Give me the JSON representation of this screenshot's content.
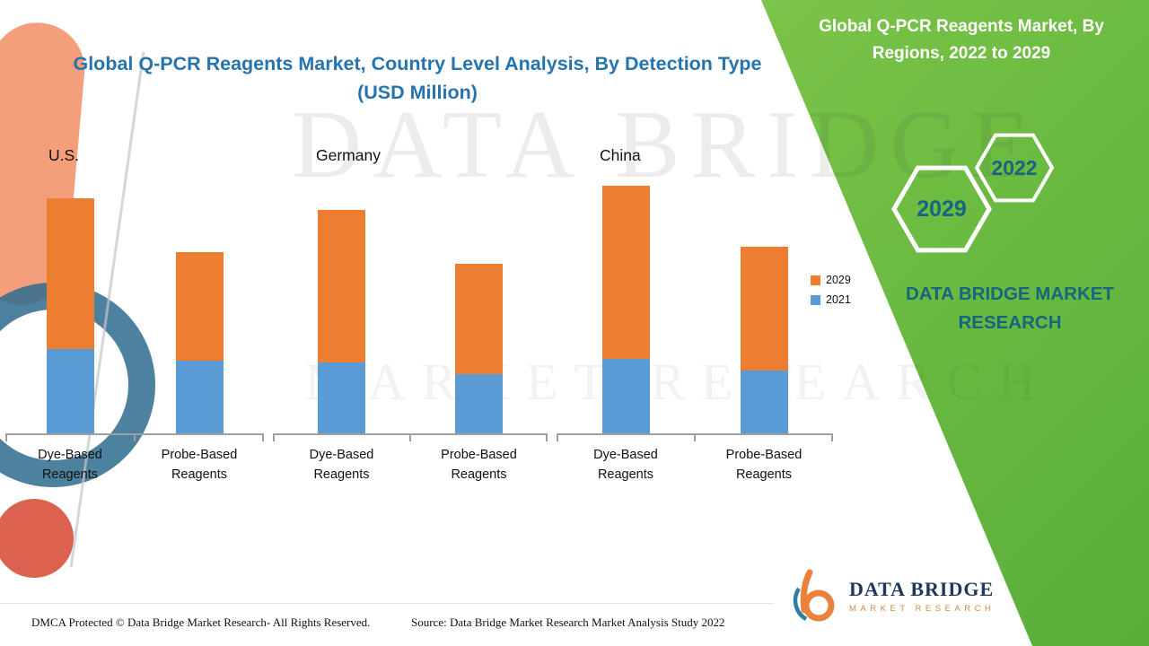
{
  "header": {
    "main_title": "Global Q-PCR Reagents Market, Country Level Analysis, By Detection Type (USD Million)"
  },
  "right_panel": {
    "title": "Global Q-PCR Reagents Market, By Regions, 2022 to 2029",
    "hexagons": [
      "2029",
      "2022"
    ],
    "brand_text": "DATA BRIDGE MARKET RESEARCH"
  },
  "legend": [
    {
      "label": "2029",
      "color": "#ED7D31"
    },
    {
      "label": "2021",
      "color": "#5B9BD5"
    }
  ],
  "chart_data": {
    "type": "bar",
    "stacked": true,
    "title": "Global Q-PCR Reagents Market, Country Level Analysis, By Detection Type (USD Million)",
    "value_axis": "no numeric axis shown; values are relative estimates from bar heights",
    "series_names": [
      "2021",
      "2029"
    ],
    "colors": {
      "2021": "#5B9BD5",
      "2029": "#ED7D31"
    },
    "legend_position": "right",
    "groups": [
      {
        "country": "U.S.",
        "bars": [
          {
            "category": "Dye-Based Reagents",
            "values": {
              "2021": 94,
              "2029": 168
            }
          },
          {
            "category": "Probe-Based Reagents",
            "values": {
              "2021": 81,
              "2029": 121
            }
          }
        ]
      },
      {
        "country": "Germany",
        "bars": [
          {
            "category": "Dye-Based Reagents",
            "values": {
              "2021": 79,
              "2029": 170
            }
          },
          {
            "category": "Probe-Based Reagents",
            "values": {
              "2021": 66,
              "2029": 123
            }
          }
        ]
      },
      {
        "country": "China",
        "bars": [
          {
            "category": "Dye-Based Reagents",
            "values": {
              "2021": 83,
              "2029": 193
            }
          },
          {
            "category": "Probe-Based Reagents",
            "values": {
              "2021": 70,
              "2029": 138
            }
          }
        ]
      }
    ]
  },
  "watermark": {
    "line1": "DATA BRIDGE",
    "line2": "MARKET RESEARCH"
  },
  "footer": {
    "dmca": "DMCA Protected © Data Bridge Market Research- All Rights Reserved.",
    "source": "Source: Data Bridge Market Research Market Analysis Study 2022"
  },
  "logo": {
    "brand": "DATA BRIDGE",
    "tagline": "MARKET RESEARCH"
  },
  "colors": {
    "panel_green": "#72BF44",
    "title_blue": "#2674AE",
    "teal_text": "#17657F",
    "axis_grey": "#9F9F9F"
  }
}
